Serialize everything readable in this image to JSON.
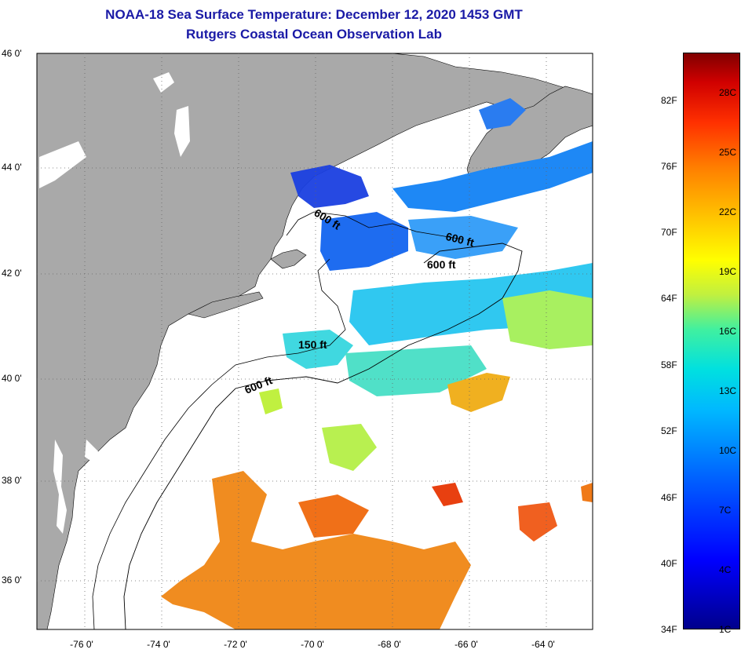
{
  "title": "NOAA-18 Sea Surface Temperature:  December 12, 2020 1453 GMT",
  "subtitle": "Rutgers Coastal Ocean Observation Lab",
  "lat_labels": [
    "46 0'",
    "44 0'",
    "42 0'",
    "40 0'",
    "38 0'",
    "36 0'"
  ],
  "lon_labels": [
    "-76 0'",
    "-74 0'",
    "-72 0'",
    "-70 0'",
    "-68 0'",
    "-66 0'",
    "-64 0'"
  ],
  "contour_labels": [
    "600 ft",
    "600 ft",
    "600 ft",
    "150 ft",
    "600 ft"
  ],
  "colorbar": {
    "fahrenheit": [
      "82F",
      "76F",
      "70F",
      "64F",
      "58F",
      "52F",
      "46F",
      "40F",
      "34F"
    ],
    "celsius": [
      "28C",
      "25C",
      "22C",
      "19C",
      "16C",
      "13C",
      "10C",
      "7C",
      "4C",
      "1C"
    ]
  },
  "colors": {
    "land": "#a9a9a9",
    "title": "#1a1aa6",
    "cold": "#0000ff",
    "warm": "#ff8000"
  }
}
